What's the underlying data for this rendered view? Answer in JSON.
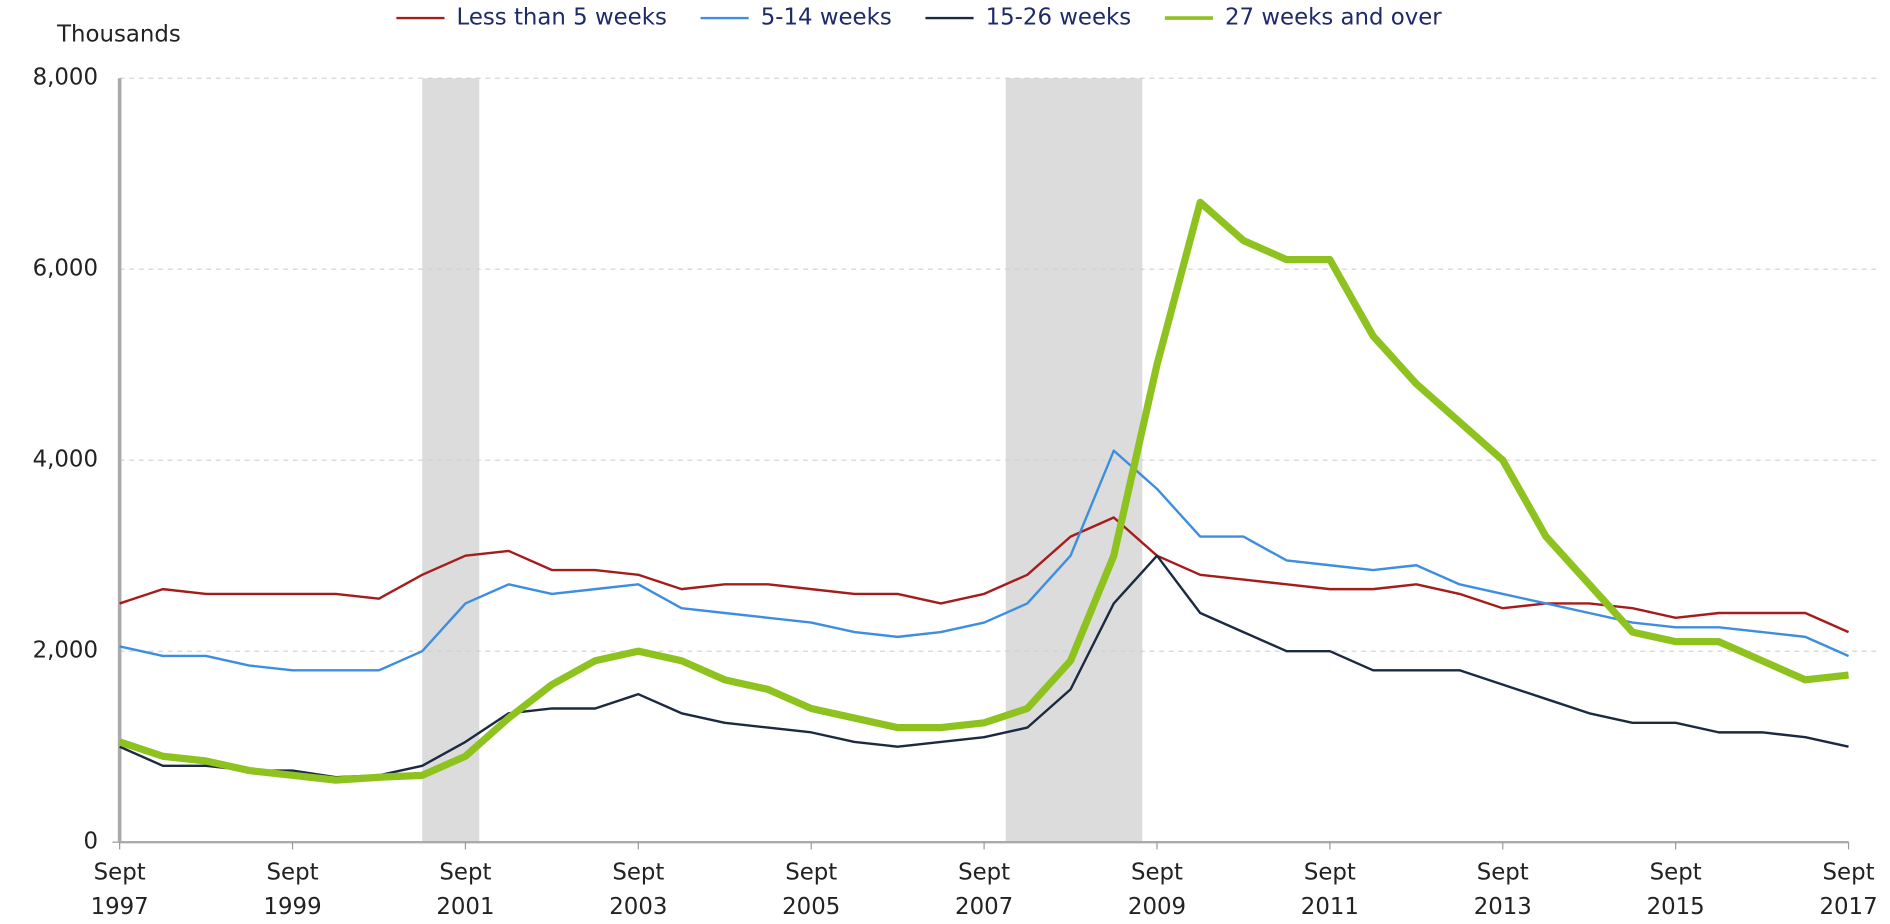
{
  "chart_data": {
    "type": "line",
    "ylabel": "Thousands",
    "x": [
      1997.67,
      1998.17,
      1998.67,
      1999.17,
      1999.67,
      2000.17,
      2000.67,
      2001.17,
      2001.67,
      2002.17,
      2002.67,
      2003.17,
      2003.67,
      2004.17,
      2004.67,
      2005.17,
      2005.67,
      2006.17,
      2006.67,
      2007.17,
      2007.67,
      2008.17,
      2008.67,
      2009.17,
      2009.67,
      2010.17,
      2010.67,
      2011.17,
      2011.67,
      2012.17,
      2012.67,
      2013.17,
      2013.67,
      2014.17,
      2014.67,
      2015.17,
      2015.67,
      2016.17,
      2016.67,
      2017.17,
      2017.67
    ],
    "series": [
      {
        "name": "Less than 5 weeks",
        "color": "#a51c1c",
        "width": 2,
        "values": [
          2500,
          2650,
          2600,
          2600,
          2600,
          2600,
          2550,
          2800,
          3000,
          3050,
          2850,
          2850,
          2800,
          2650,
          2700,
          2700,
          2650,
          2600,
          2600,
          2500,
          2600,
          2800,
          3200,
          3400,
          3000,
          2800,
          2750,
          2700,
          2650,
          2650,
          2700,
          2600,
          2450,
          2500,
          2500,
          2450,
          2350,
          2400,
          2400,
          2400,
          2200
        ]
      },
      {
        "name": "5-14 weeks",
        "color": "#3d8ee0",
        "width": 2,
        "values": [
          2050,
          1950,
          1950,
          1850,
          1800,
          1800,
          1800,
          2000,
          2500,
          2700,
          2600,
          2650,
          2700,
          2450,
          2400,
          2350,
          2300,
          2200,
          2150,
          2200,
          2300,
          2500,
          3000,
          4100,
          3700,
          3200,
          3200,
          2950,
          2900,
          2850,
          2900,
          2700,
          2600,
          2500,
          2400,
          2300,
          2250,
          2250,
          2200,
          2150,
          1950
        ]
      },
      {
        "name": "15-26 weeks",
        "color": "#1b2a40",
        "width": 2,
        "values": [
          1000,
          800,
          800,
          750,
          750,
          680,
          700,
          800,
          1050,
          1350,
          1400,
          1400,
          1550,
          1350,
          1250,
          1200,
          1150,
          1050,
          1000,
          1050,
          1100,
          1200,
          1600,
          2500,
          3000,
          2400,
          2200,
          2000,
          2000,
          1800,
          1800,
          1800,
          1650,
          1500,
          1350,
          1250,
          1250,
          1150,
          1150,
          1100,
          1000
        ]
      },
      {
        "name": "27 weeks and over",
        "color": "#8dc21f",
        "width": 6,
        "values": [
          1050,
          900,
          850,
          750,
          700,
          650,
          680,
          700,
          900,
          1300,
          1650,
          1900,
          2000,
          1900,
          1700,
          1600,
          1400,
          1300,
          1200,
          1200,
          1250,
          1400,
          1900,
          3000,
          5000,
          6700,
          6300,
          6100,
          6100,
          5300,
          4800,
          4400,
          4000,
          3200,
          2700,
          2200,
          2100,
          2100,
          1900,
          1700,
          1750
        ]
      }
    ],
    "recessions": [
      [
        2001.17,
        2001.83
      ],
      [
        2007.92,
        2009.5
      ]
    ],
    "xlim": [
      1997.67,
      2017.67
    ],
    "xticks": [
      {
        "value": 1997.67,
        "label": "Sept 1997"
      },
      {
        "value": 1999.67,
        "label": "Sept 1999"
      },
      {
        "value": 2001.67,
        "label": "Sept 2001"
      },
      {
        "value": 2003.67,
        "label": "Sept 2003"
      },
      {
        "value": 2005.67,
        "label": "Sept 2005"
      },
      {
        "value": 2007.67,
        "label": "Sept 2007"
      },
      {
        "value": 2009.67,
        "label": "Sept 2009"
      },
      {
        "value": 2011.67,
        "label": "Sept 2011"
      },
      {
        "value": 2013.67,
        "label": "Sept 2013"
      },
      {
        "value": 2015.67,
        "label": "Sept 2015"
      },
      {
        "value": 2017.67,
        "label": "Sept 2017"
      }
    ],
    "ylim": [
      0,
      8000
    ],
    "yticks": [
      0,
      {
        "value": 2000,
        "label": "2,000"
      },
      {
        "value": 4000,
        "label": "4,000"
      },
      {
        "value": 6000,
        "label": "6,000"
      },
      {
        "value": 8000,
        "label": "8,000"
      }
    ],
    "grid": true,
    "legend": "top"
  }
}
